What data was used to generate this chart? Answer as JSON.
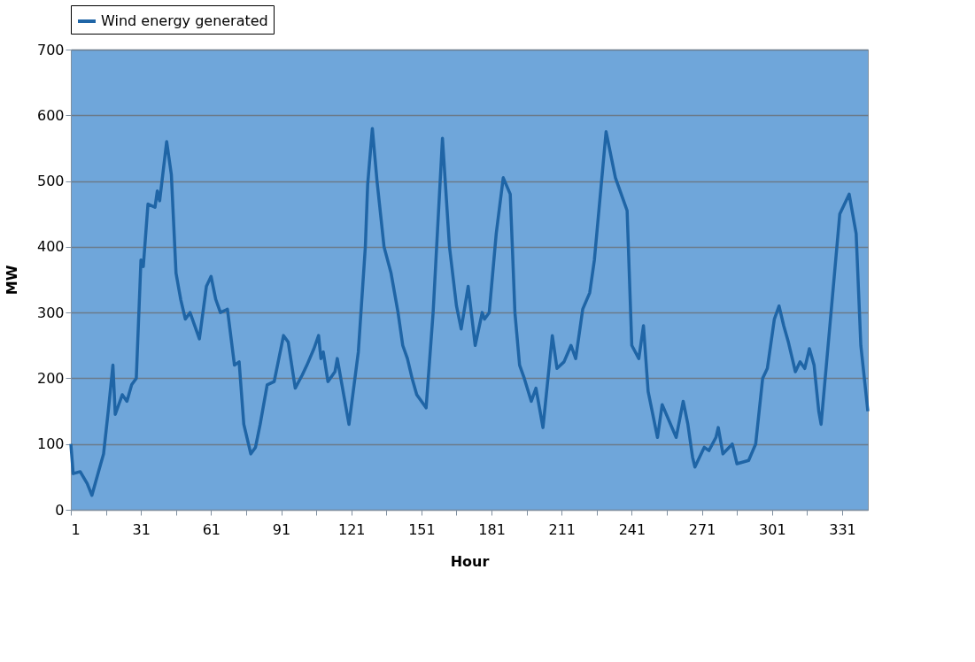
{
  "chart_data": {
    "type": "line",
    "xlabel": "Hour",
    "ylabel": "MW",
    "x": [
      1,
      2,
      5,
      8,
      10,
      13,
      15,
      17,
      19,
      20,
      23,
      25,
      27,
      29,
      31,
      32,
      34,
      37,
      38,
      39,
      42,
      44,
      46,
      48,
      50,
      52,
      56,
      59,
      61,
      63,
      65,
      68,
      71,
      73,
      75,
      78,
      80,
      82,
      85,
      88,
      92,
      94,
      97,
      100,
      102,
      105,
      107,
      108,
      109,
      111,
      114,
      115,
      118,
      120,
      124,
      127,
      128,
      130,
      132,
      135,
      138,
      141,
      143,
      145,
      147,
      149,
      153,
      156,
      160,
      163,
      166,
      168,
      171,
      174,
      177,
      178,
      180,
      183,
      186,
      189,
      191,
      193,
      195,
      198,
      200,
      203,
      207,
      209,
      212,
      215,
      217,
      220,
      223,
      225,
      230,
      234,
      237,
      239,
      241,
      244,
      246,
      248,
      252,
      254,
      260,
      263,
      265,
      267,
      268,
      272,
      274,
      277,
      278,
      280,
      284,
      286,
      291,
      294,
      297,
      299,
      302,
      304,
      306,
      308,
      311,
      313,
      315,
      317,
      319,
      321,
      322,
      326,
      330,
      334,
      337,
      339,
      342
    ],
    "series": [
      {
        "name": "Wind energy generated",
        "color": "#1f65a6",
        "values": [
          100,
          55,
          58,
          40,
          22,
          60,
          85,
          150,
          220,
          145,
          175,
          165,
          190,
          200,
          380,
          370,
          465,
          460,
          485,
          470,
          560,
          510,
          360,
          320,
          290,
          300,
          260,
          340,
          355,
          320,
          300,
          305,
          220,
          225,
          130,
          85,
          95,
          130,
          190,
          195,
          265,
          255,
          185,
          205,
          220,
          245,
          265,
          230,
          240,
          195,
          210,
          230,
          170,
          130,
          240,
          400,
          495,
          580,
          500,
          400,
          360,
          300,
          250,
          230,
          200,
          175,
          155,
          300,
          565,
          400,
          310,
          275,
          340,
          250,
          300,
          290,
          300,
          420,
          505,
          480,
          300,
          220,
          200,
          165,
          185,
          125,
          265,
          215,
          225,
          250,
          230,
          305,
          330,
          380,
          575,
          505,
          475,
          455,
          250,
          230,
          280,
          180,
          110,
          160,
          110,
          165,
          130,
          80,
          65,
          95,
          90,
          110,
          125,
          85,
          100,
          70,
          75,
          100,
          200,
          215,
          290,
          310,
          280,
          255,
          210,
          225,
          215,
          245,
          220,
          150,
          130,
          290,
          450,
          480,
          420,
          250,
          150
        ]
      }
    ],
    "xlim": [
      1,
      342
    ],
    "xticks": [
      1,
      {
        "value": 16,
        "label": null
      },
      31,
      {
        "value": 46,
        "label": null
      },
      61,
      {
        "value": 76,
        "label": null
      },
      91,
      {
        "value": 106,
        "label": null
      },
      121,
      {
        "value": 136,
        "label": null
      },
      151,
      {
        "value": 166,
        "label": null
      },
      181,
      {
        "value": 196,
        "label": null
      },
      211,
      {
        "value": 226,
        "label": null
      },
      241,
      {
        "value": 256,
        "label": null
      },
      271,
      {
        "value": 286,
        "label": null
      },
      301,
      {
        "value": 316,
        "label": null
      },
      331
    ],
    "ylim": [
      0,
      700
    ],
    "yticks": [
      0,
      100,
      200,
      300,
      400,
      500,
      600,
      700
    ],
    "grid": "y",
    "legend": "top",
    "line_style": "solid",
    "marker": "none"
  }
}
